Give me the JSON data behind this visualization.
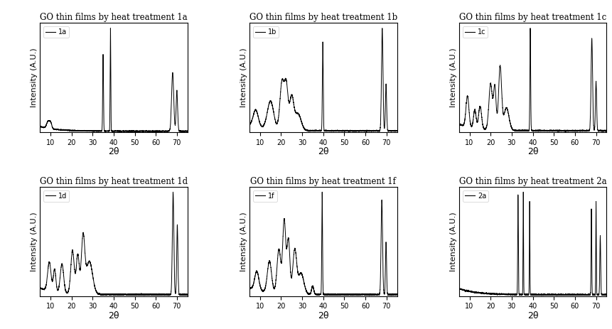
{
  "titles": [
    "GO thin films by heat treatment 1a",
    "GO thin films by heat treatment 1b",
    "GO thin films by heat treatment 1c",
    "GO thin films by heat treatment 1d",
    "GO thin films by heat treatment 1f",
    "GO thin films by heat treatment 2a"
  ],
  "legend_labels": [
    "1a",
    "1b",
    "1c",
    "1d",
    "1f",
    "2a"
  ],
  "xlabel": "2θ",
  "ylabel": "Intensity (A.U.)",
  "xlim": [
    5,
    75
  ],
  "xticks": [
    10,
    20,
    30,
    40,
    50,
    60,
    70
  ],
  "background_color": "#ffffff",
  "line_color": "#000000",
  "title_fontsize": 8.5,
  "axis_fontsize": 8,
  "tick_fontsize": 7,
  "legend_fontsize": 7
}
